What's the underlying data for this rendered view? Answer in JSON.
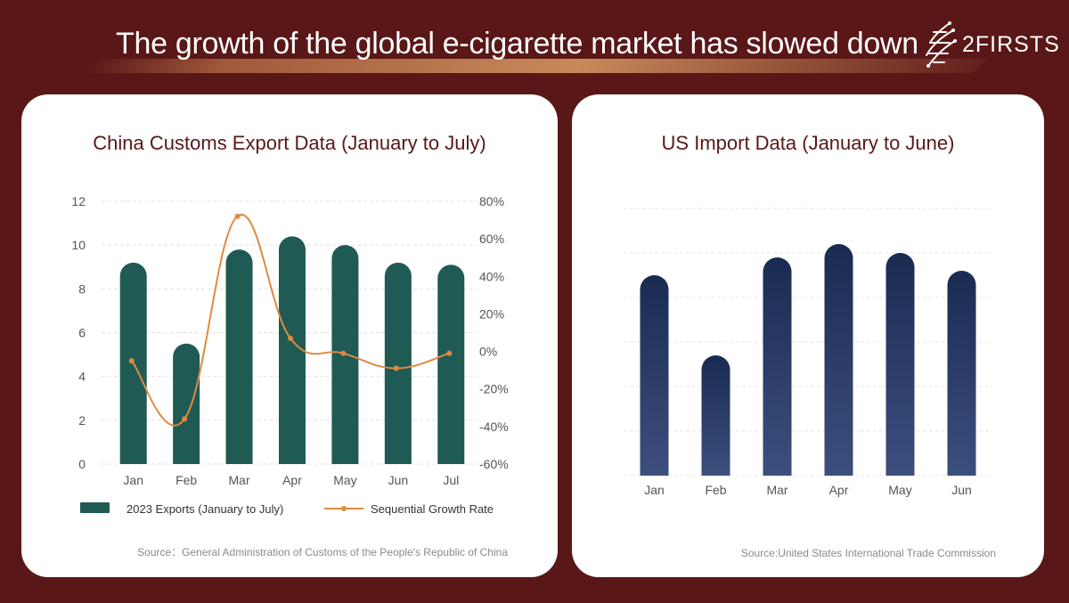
{
  "header": {
    "title": "The growth of the global e-cigarette market has slowed down",
    "logo_text": "2FIRSTS"
  },
  "colors": {
    "background": "#5a1717",
    "title_text": "#5a1818",
    "export_bar": "#1f5b54",
    "growth_line": "#e08a40",
    "import_bar_top": "#1a2b52",
    "import_bar_bottom": "#3c4f7d"
  },
  "chart_data": [
    {
      "type": "bar",
      "title": "China Customs Export Data (January to July)",
      "categories": [
        "Jan",
        "Feb",
        "Mar",
        "Apr",
        "May",
        "Jun",
        "Jul"
      ],
      "yticks": [
        "12",
        "10",
        "8",
        "6",
        "4",
        "2",
        "0"
      ],
      "y2ticks": [
        "80%",
        "60%",
        "40%",
        "20%",
        "0%",
        "-20%",
        "-40%",
        "-60%"
      ],
      "ylim": [
        0,
        12
      ],
      "y2lim": [
        -60,
        80
      ],
      "series": [
        {
          "name": "2023 Exports (January to July)",
          "type": "bar",
          "axis": "left",
          "values": [
            9.2,
            5.5,
            9.8,
            10.4,
            10.0,
            9.2,
            9.1
          ]
        },
        {
          "name": "Sequential Growth Rate",
          "type": "line",
          "axis": "right",
          "values": [
            -5,
            -36,
            72,
            7,
            -1,
            -9,
            -1
          ]
        }
      ],
      "grid": true,
      "legend": "bottom",
      "source": "Source：General Administration of Customs of the People's Republic of China"
    },
    {
      "type": "bar",
      "title": "US Import Data (January to June)",
      "categories": [
        "Jan",
        "Feb",
        "Mar",
        "Apr",
        "May",
        "Jun"
      ],
      "ylim": [
        0,
        6
      ],
      "series": [
        {
          "values": [
            4.5,
            2.7,
            4.9,
            5.2,
            5.0,
            4.6
          ]
        }
      ],
      "grid": true,
      "source": "Source:United States International Trade Commission"
    }
  ]
}
